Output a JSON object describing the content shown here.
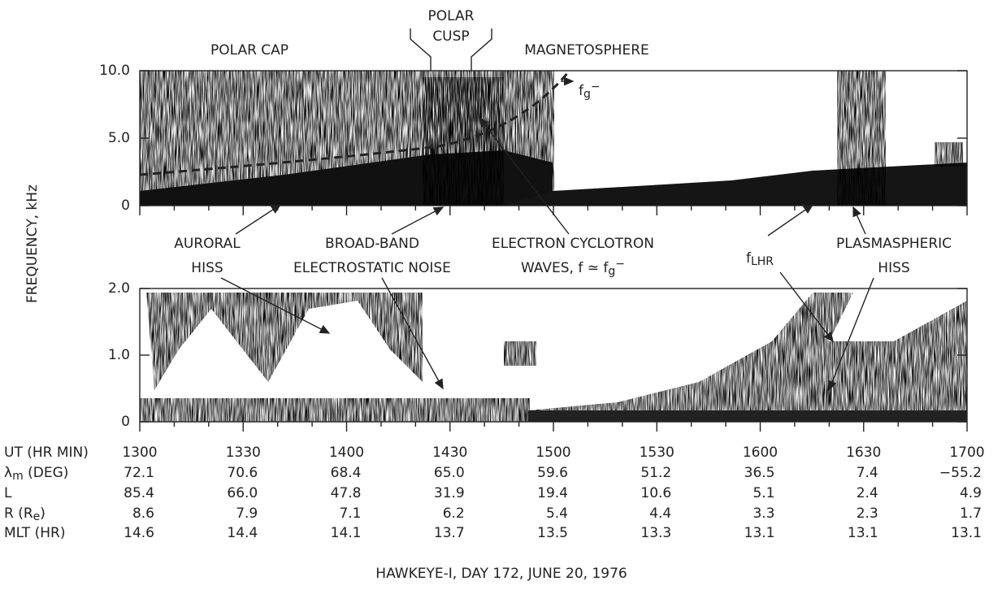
{
  "header": {
    "polar_cap": "POLAR CAP",
    "polar_cusp": [
      "POLAR",
      "CUSP"
    ],
    "magnetosphere": "MAGNETOSPHERE"
  },
  "y_axis_label": "FREQUENCY, kHz",
  "panels": [
    {
      "yticks": [
        "10.0",
        "5.0",
        "0"
      ]
    },
    {
      "yticks": [
        "2.0",
        "1.0",
        "0"
      ]
    }
  ],
  "annotations": [
    {
      "lines": [
        [
          {
            "t": "f"
          },
          {
            "t": "g",
            "s": "sub"
          },
          {
            "t": "−",
            "s": "sup"
          }
        ]
      ]
    },
    {
      "lines": [
        [
          {
            "t": "AURORAL"
          }
        ],
        [
          {
            "t": "HISS"
          }
        ]
      ]
    },
    {
      "lines": [
        [
          {
            "t": "BROAD-BAND"
          }
        ],
        [
          {
            "t": "ELECTROSTATIC NOISE"
          }
        ]
      ]
    },
    {
      "lines": [
        [
          {
            "t": "ELECTRON CYCLOTRON"
          }
        ],
        [
          {
            "t": "WAVES, f ≃ f"
          },
          {
            "t": "g",
            "s": "sub"
          },
          {
            "t": "−",
            "s": "sup"
          }
        ]
      ]
    },
    {
      "lines": [
        [
          {
            "t": "f"
          },
          {
            "t": "LHR",
            "s": "sub"
          }
        ]
      ]
    },
    {
      "lines": [
        [
          {
            "t": "PLASMASPHERIC"
          }
        ],
        [
          {
            "t": "HISS"
          }
        ]
      ]
    }
  ],
  "table": {
    "rows": [
      {
        "label": [
          {
            "t": "UT (HR MIN)"
          }
        ],
        "cells": [
          "1300",
          "1330",
          "1400",
          "1430",
          "1500",
          "1530",
          "1600",
          "1630",
          "1700"
        ]
      },
      {
        "label": [
          {
            "t": "λ"
          },
          {
            "t": "m",
            "s": "sub"
          },
          {
            "t": " (DEG)"
          }
        ],
        "cells": [
          "72.1",
          "70.6",
          "68.4",
          "65.0",
          "59.6",
          "51.2",
          "36.5",
          "7.4",
          "−55.2"
        ]
      },
      {
        "label": [
          {
            "t": "L"
          }
        ],
        "cells": [
          "85.4",
          "66.0",
          "47.8",
          "31.9",
          "19.4",
          "10.6",
          "5.1",
          "2.4",
          "4.9"
        ]
      },
      {
        "label": [
          {
            "t": "R (R"
          },
          {
            "t": "e",
            "s": "sub"
          },
          {
            "t": ")"
          }
        ],
        "cells": [
          "8.6",
          "7.9",
          "7.1",
          "6.2",
          "5.4",
          "4.4",
          "3.3",
          "2.3",
          "1.7"
        ]
      },
      {
        "label": [
          {
            "t": "MLT (HR)"
          }
        ],
        "cells": [
          "14.6",
          "14.4",
          "14.1",
          "13.7",
          "13.5",
          "13.3",
          "13.1",
          "13.1",
          "13.1"
        ]
      }
    ]
  },
  "caption": "HAWKEYE-I,  DAY 172,  JUNE 20, 1976"
}
